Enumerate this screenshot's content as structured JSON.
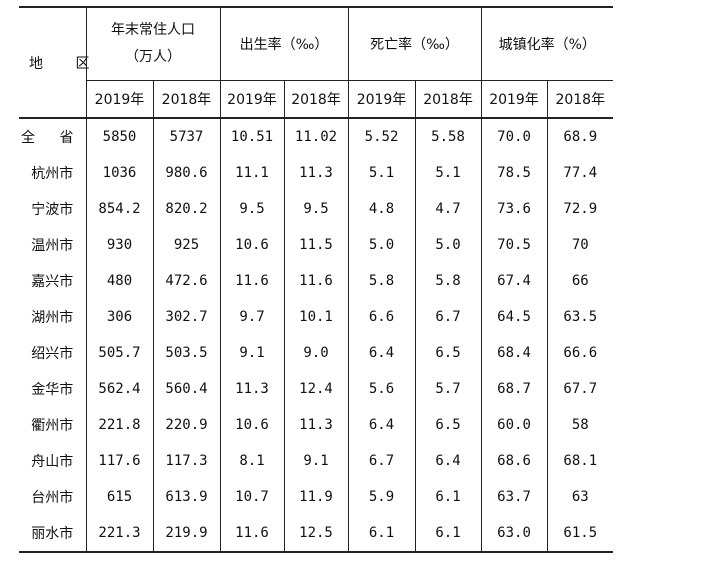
{
  "table": {
    "headers": {
      "region": "地 区",
      "population_line1": "年末常住人口",
      "population_line2": "（万人）",
      "birth_rate": "出生率（‰）",
      "death_rate": "死亡率（‰）",
      "urbanization": "城镇化率（%）",
      "year_2019": "2019年",
      "year_2018": "2018年"
    },
    "rows": [
      {
        "region": "全 省",
        "pop2019": "5850",
        "pop2018": "5737",
        "birth2019": "10.51",
        "birth2018": "11.02",
        "death2019": "5.52",
        "death2018": "5.58",
        "urban2019": "70.0",
        "urban2018": "68.9"
      },
      {
        "region": "杭州市",
        "pop2019": "1036",
        "pop2018": "980.6",
        "birth2019": "11.1",
        "birth2018": "11.3",
        "death2019": "5.1",
        "death2018": "5.1",
        "urban2019": "78.5",
        "urban2018": "77.4"
      },
      {
        "region": "宁波市",
        "pop2019": "854.2",
        "pop2018": "820.2",
        "birth2019": "9.5",
        "birth2018": "9.5",
        "death2019": "4.8",
        "death2018": "4.7",
        "urban2019": "73.6",
        "urban2018": "72.9"
      },
      {
        "region": "温州市",
        "pop2019": "930",
        "pop2018": "925",
        "birth2019": "10.6",
        "birth2018": "11.5",
        "death2019": "5.0",
        "death2018": "5.0",
        "urban2019": "70.5",
        "urban2018": "70"
      },
      {
        "region": "嘉兴市",
        "pop2019": "480",
        "pop2018": "472.6",
        "birth2019": "11.6",
        "birth2018": "11.6",
        "death2019": "5.8",
        "death2018": "5.8",
        "urban2019": "67.4",
        "urban2018": "66"
      },
      {
        "region": "湖州市",
        "pop2019": "306",
        "pop2018": "302.7",
        "birth2019": "9.7",
        "birth2018": "10.1",
        "death2019": "6.6",
        "death2018": "6.7",
        "urban2019": "64.5",
        "urban2018": "63.5"
      },
      {
        "region": "绍兴市",
        "pop2019": "505.7",
        "pop2018": "503.5",
        "birth2019": "9.1",
        "birth2018": "9.0",
        "death2019": "6.4",
        "death2018": "6.5",
        "urban2019": "68.4",
        "urban2018": "66.6"
      },
      {
        "region": "金华市",
        "pop2019": "562.4",
        "pop2018": "560.4",
        "birth2019": "11.3",
        "birth2018": "12.4",
        "death2019": "5.6",
        "death2018": "5.7",
        "urban2019": "68.7",
        "urban2018": "67.7"
      },
      {
        "region": "衢州市",
        "pop2019": "221.8",
        "pop2018": "220.9",
        "birth2019": "10.6",
        "birth2018": "11.3",
        "death2019": "6.4",
        "death2018": "6.5",
        "urban2019": "60.0",
        "urban2018": "58"
      },
      {
        "region": "舟山市",
        "pop2019": "117.6",
        "pop2018": "117.3",
        "birth2019": "8.1",
        "birth2018": "9.1",
        "death2019": "6.7",
        "death2018": "6.4",
        "urban2019": "68.6",
        "urban2018": "68.1"
      },
      {
        "region": "台州市",
        "pop2019": "615",
        "pop2018": "613.9",
        "birth2019": "10.7",
        "birth2018": "11.9",
        "death2019": "5.9",
        "death2018": "6.1",
        "urban2019": "63.7",
        "urban2018": "63"
      },
      {
        "region": "丽水市",
        "pop2019": "221.3",
        "pop2018": "219.9",
        "birth2019": "11.6",
        "birth2018": "12.5",
        "death2019": "6.1",
        "death2018": "6.1",
        "urban2019": "63.0",
        "urban2018": "61.5"
      }
    ]
  }
}
